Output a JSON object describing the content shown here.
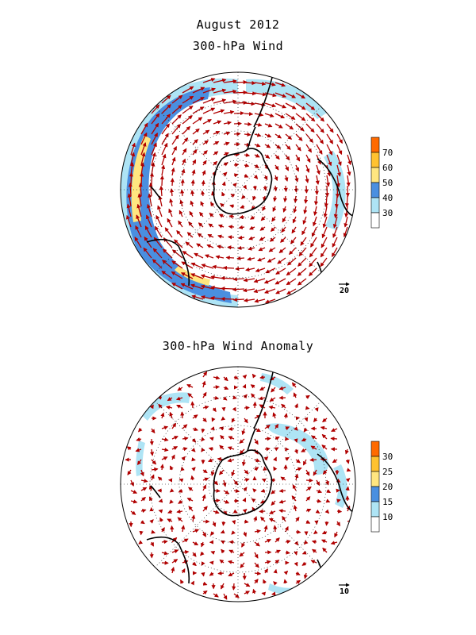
{
  "header": {
    "title": "August 2012",
    "panel1_title": "300-hPa Wind",
    "panel2_title": "300-hPa Wind Anomaly"
  },
  "panels": [
    {
      "name": "wind",
      "colorbar_labels": [
        "70",
        "60",
        "50",
        "40",
        "30"
      ],
      "colorbar_colors": [
        "#ff6a00",
        "#ffc230",
        "#ffe680",
        "#4a8fe0",
        "#aee4f5",
        "#ffffff"
      ],
      "reference_vector": "20"
    },
    {
      "name": "anomaly",
      "colorbar_labels": [
        "30",
        "25",
        "20",
        "15",
        "10"
      ],
      "colorbar_colors": [
        "#ff6a00",
        "#ffc230",
        "#ffe680",
        "#4a8fe0",
        "#aee4f5",
        "#ffffff"
      ],
      "reference_vector": "10"
    }
  ],
  "colors": {
    "arrow": "#b00000",
    "coast": "#000000",
    "shade_light": "#aee4f5",
    "shade_mid": "#4a8fe0",
    "shade_yellow": "#ffe680"
  }
}
